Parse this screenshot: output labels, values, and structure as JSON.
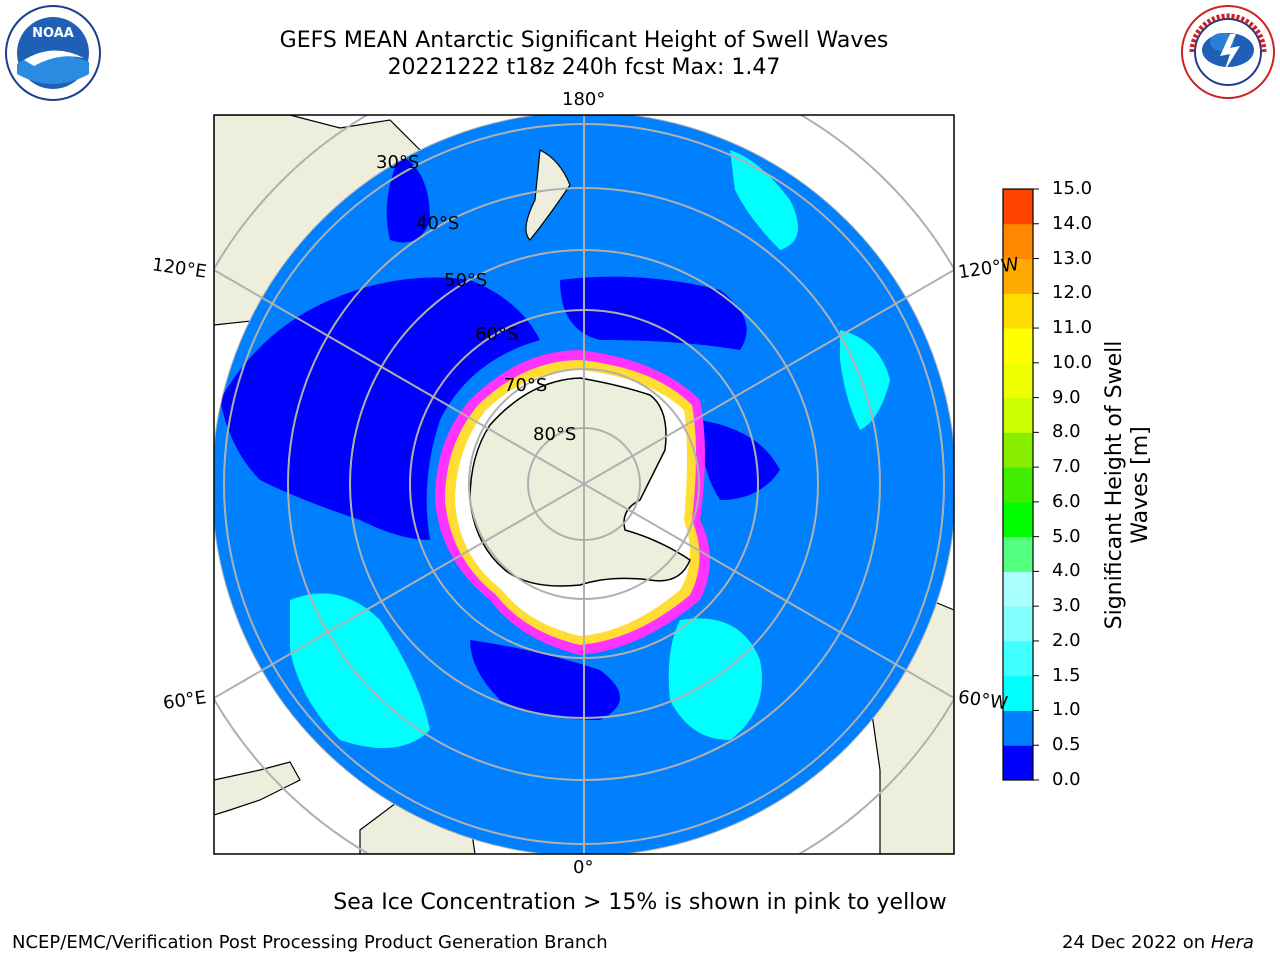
{
  "header": {
    "title_line1": "GEFS MEAN Antarctic Significant Height of Swell Waves",
    "title_line2": "20221222 t18z 240h fcst   Max: 1.47"
  },
  "logos": {
    "left": {
      "name": "noaa-logo",
      "text": "NOAA",
      "ring_text": "NATIONAL OCEANIC AND ATMOSPHERIC ADMINISTRATION · U.S. DEPARTMENT OF COMMERCE"
    },
    "right": {
      "name": "nws-logo",
      "ring_text": "NATIONAL WEATHER SERVICE"
    }
  },
  "map": {
    "projection": "south-polar-stereographic",
    "lon_labels": {
      "top": "180°",
      "bottom": "0°",
      "left_upper": "120°E",
      "left_lower": "60°E",
      "right_upper": "120°W",
      "right_lower": "60°W"
    },
    "lat_labels": [
      "30°S",
      "40°S",
      "50°S",
      "60°S",
      "70°S",
      "80°S"
    ],
    "colors": {
      "land": "#eeeedd",
      "ocean_low": "#0000ff",
      "ocean_mid": "#0080ff",
      "swell_1_15": "#00ffff",
      "swell_15_2": "#40ffff",
      "ice_pink": "#ff33ff",
      "ice_yellow": "#ffdd33",
      "ice_white": "#ffffff",
      "grid": "#b0b0b0"
    }
  },
  "colorbar": {
    "label": "Significant Height of Swell Waves [m]",
    "ticks": [
      "0.0",
      "0.5",
      "1.0",
      "1.5",
      "2.0",
      "3.0",
      "4.0",
      "5.0",
      "6.0",
      "7.0",
      "8.0",
      "9.0",
      "10.0",
      "11.0",
      "12.0",
      "13.0",
      "14.0",
      "15.0"
    ],
    "colors": [
      "#0000ff",
      "#0080ff",
      "#00ffff",
      "#40ffff",
      "#80ffff",
      "#aaffff",
      "#55ff80",
      "#00ff00",
      "#40ee00",
      "#88ee00",
      "#ccff00",
      "#eeff00",
      "#ffff00",
      "#ffdd00",
      "#ffaa00",
      "#ff8800",
      "#ff4400",
      "#ff0000"
    ]
  },
  "footer": {
    "note": "Sea Ice Concentration > 15% is shown in pink to yellow",
    "branch": "NCEP/EMC/Verification Post Processing Product Generation Branch",
    "date_prefix": "24 Dec 2022 on ",
    "machine": "Hera"
  }
}
